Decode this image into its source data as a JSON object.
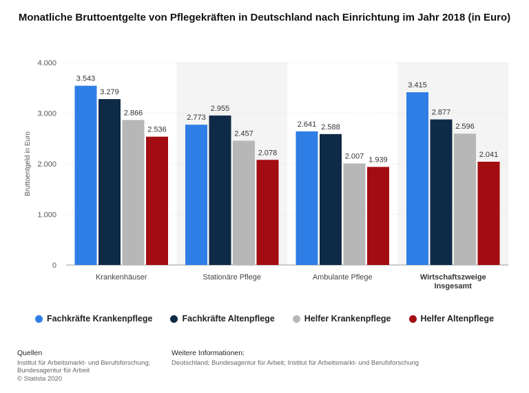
{
  "chart_data": {
    "type": "bar",
    "title": "Monatliche Bruttoentgelte von Pflegekräften in Deutschland nach Einrichtung im Jahr 2018 (in Euro)",
    "ylabel": "Bruttoentgeld in Euro",
    "xlabel": "",
    "ylim": [
      0,
      4000
    ],
    "yticks": [
      0,
      1000,
      2000,
      3000,
      4000
    ],
    "ytick_labels": [
      "0",
      "1.000",
      "2.000",
      "3.000",
      "4.000"
    ],
    "categories": [
      "Krankenhäuser",
      "Stationäre Pflege",
      "Ambulante Pflege",
      "Wirtschaftszweige Insgesamt"
    ],
    "category_label_lines": [
      [
        "Krankenhäuser"
      ],
      [
        "Stationäre Pflege"
      ],
      [
        "Ambulante Pflege"
      ],
      [
        "Wirtschaftszweige",
        "Insgesamt"
      ]
    ],
    "category_bold": [
      false,
      false,
      false,
      true
    ],
    "series": [
      {
        "name": "Fachkräfte Krankenpflege",
        "color": "#2f7ee6",
        "values": [
          3543,
          2773,
          2641,
          3415
        ],
        "labels": [
          "3.543",
          "2.773",
          "2.641",
          "3.415"
        ]
      },
      {
        "name": "Fachkräfte Altenpflege",
        "color": "#0e2a47",
        "values": [
          3279,
          2955,
          2588,
          2877
        ],
        "labels": [
          "3.279",
          "2.955",
          "2.588",
          "2.877"
        ]
      },
      {
        "name": "Helfer Krankenpflege",
        "color": "#b7b7b7",
        "values": [
          2866,
          2457,
          2007,
          2596
        ],
        "labels": [
          "2.866",
          "2.457",
          "2.007",
          "2.596"
        ]
      },
      {
        "name": "Helfer Altenpflege",
        "color": "#a30d11",
        "values": [
          2536,
          2078,
          1939,
          2041
        ],
        "labels": [
          "2.536",
          "2.078",
          "1.939",
          "2.041"
        ]
      }
    ],
    "grid": true,
    "legend_position": "bottom"
  },
  "footer": {
    "sources_heading": "Quellen",
    "sources_lines": [
      "Institut für Arbeitsmarkt- und Berufsforschung;",
      "Bundesagentur für Arbeit",
      "© Statista 2020"
    ],
    "info_heading": "Weitere Informationen:",
    "info_text": "Deutschland; Bundesagentur für Arbeit; Institut für Arbeitsmarkt- und Berufsforschung"
  }
}
